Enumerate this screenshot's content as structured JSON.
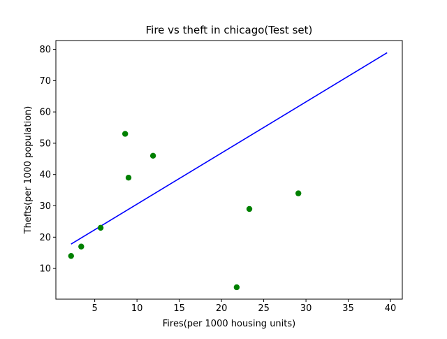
{
  "chart_data": {
    "type": "scatter",
    "title": "Fire vs theft in chicago(Test set)",
    "xlabel": "Fires(per 1000 housing units)",
    "ylabel": "Thefts(per 1000 population)",
    "xlim": [
      0.4,
      41.4
    ],
    "ylim": [
      0.2,
      82.8
    ],
    "xticks": [
      5,
      10,
      15,
      20,
      25,
      30,
      35,
      40
    ],
    "yticks": [
      10,
      20,
      30,
      40,
      50,
      60,
      70,
      80
    ],
    "grid": false,
    "legend": "none",
    "series": [
      {
        "kind": "scatter",
        "color": "#008000",
        "points": [
          {
            "x": 2.2,
            "y": 14
          },
          {
            "x": 3.4,
            "y": 17
          },
          {
            "x": 5.7,
            "y": 23
          },
          {
            "x": 8.6,
            "y": 53
          },
          {
            "x": 9.0,
            "y": 39
          },
          {
            "x": 11.9,
            "y": 46
          },
          {
            "x": 21.8,
            "y": 4
          },
          {
            "x": 23.3,
            "y": 29
          },
          {
            "x": 29.1,
            "y": 34
          }
        ]
      },
      {
        "kind": "line",
        "color": "#0000ff",
        "points": [
          {
            "x": 2.2,
            "y": 17.8
          },
          {
            "x": 39.6,
            "y": 78.9
          }
        ]
      }
    ]
  }
}
